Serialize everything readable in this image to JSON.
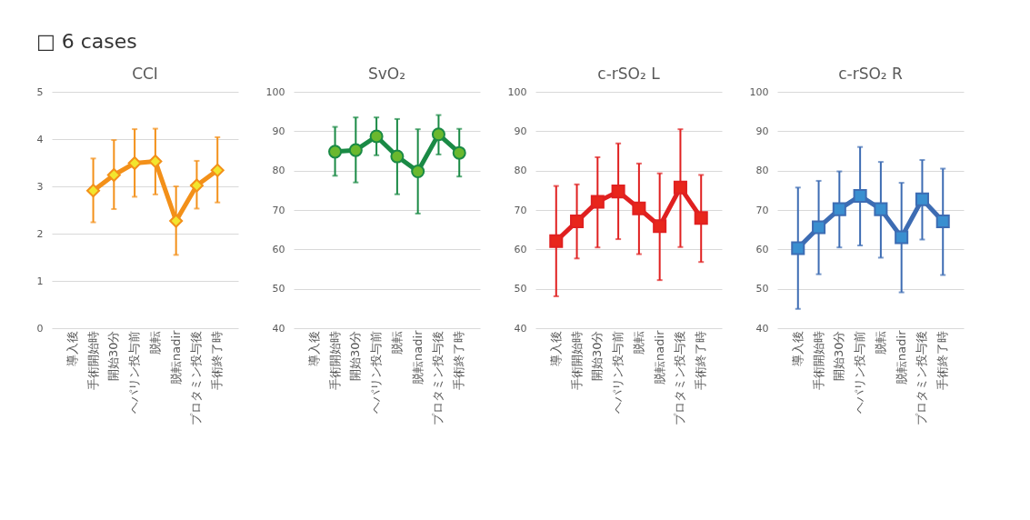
{
  "chart_data": [
    {
      "type": "line",
      "title": "CCI",
      "annotations": [
        "□ 6 cases"
      ],
      "categories": [
        "導入後",
        "手術開始時",
        "開始30分",
        "ヘパリン投与前",
        "脱転",
        "脱転nadir",
        "プロタミン投与後",
        "手術終了時"
      ],
      "series": [
        {
          "color": "#f39019",
          "values": [
            null,
            2.91,
            3.24,
            3.49,
            3.53,
            2.27,
            3.02,
            3.34
          ],
          "errors": [
            null,
            [
              2.24,
              3.59
            ],
            [
              2.52,
              3.98
            ],
            [
              2.78,
              4.21
            ],
            [
              2.83,
              4.22
            ],
            [
              1.55,
              3.0
            ],
            [
              2.53,
              3.54
            ],
            [
              2.66,
              4.04
            ]
          ]
        }
      ],
      "ylim": [
        0,
        5
      ],
      "yticks": [
        0,
        1,
        2,
        3,
        4,
        5
      ],
      "grid": "y",
      "marker": "diamond",
      "line_style": "solid"
    },
    {
      "type": "line",
      "title": "SvO₂",
      "categories": [
        "導入後",
        "手術開始時",
        "開始30分",
        "ヘパリン投与前",
        "脱転",
        "脱転nadir",
        "プロタミン投与後",
        "手術終了時"
      ],
      "series": [
        {
          "color": "#1a8a45",
          "values": [
            null,
            84.8,
            85.2,
            88.7,
            83.6,
            79.8,
            89.2,
            84.5
          ],
          "errors": [
            null,
            [
              78.7,
              91.1
            ],
            [
              77.0,
              93.5
            ],
            [
              83.9,
              93.5
            ],
            [
              74.0,
              93.1
            ],
            [
              69.1,
              90.5
            ],
            [
              84.1,
              94.1
            ],
            [
              78.5,
              90.6
            ]
          ]
        }
      ],
      "ylim": [
        40,
        100
      ],
      "yticks": [
        40,
        50,
        60,
        70,
        80,
        90,
        100
      ],
      "grid": "y",
      "marker": "circle",
      "line_style": "solid"
    },
    {
      "type": "line",
      "title": "c-rSO₂ L",
      "categories": [
        "導入後",
        "手術開始時",
        "開始30分",
        "ヘパリン投与前",
        "脱転",
        "脱転nadir",
        "プロタミン投与後",
        "手術終了時"
      ],
      "series": [
        {
          "color": "#e02020",
          "values": [
            62.1,
            67.1,
            72.1,
            74.7,
            70.4,
            65.9,
            75.7,
            68.0
          ],
          "errors": [
            [
              48.1,
              76.1
            ],
            [
              57.7,
              76.5
            ],
            [
              60.5,
              83.4
            ],
            [
              62.6,
              86.9
            ],
            [
              58.8,
              81.8
            ],
            [
              52.2,
              79.3
            ],
            [
              60.6,
              90.5
            ],
            [
              56.8,
              78.9
            ]
          ]
        }
      ],
      "ylim": [
        40,
        100
      ],
      "yticks": [
        40,
        50,
        60,
        70,
        80,
        90,
        100
      ],
      "grid": "y",
      "marker": "square",
      "line_style": "solid"
    },
    {
      "type": "line",
      "title": "c-rSO₂ R",
      "categories": [
        "導入後",
        "手術開始時",
        "開始30分",
        "ヘパリン投与前",
        "脱転",
        "脱転nadir",
        "プロタミン投与後",
        "手術終了時"
      ],
      "series": [
        {
          "color": "#3d6cb3",
          "values": [
            60.3,
            65.6,
            70.2,
            73.6,
            70.2,
            63.1,
            72.7,
            67.1
          ],
          "errors": [
            [
              44.9,
              75.7
            ],
            [
              53.7,
              77.4
            ],
            [
              60.5,
              79.8
            ],
            [
              61.0,
              86.0
            ],
            [
              57.9,
              82.2
            ],
            [
              49.1,
              76.9
            ],
            [
              62.5,
              82.7
            ],
            [
              53.5,
              80.5
            ]
          ]
        }
      ],
      "ylim": [
        40,
        100
      ],
      "yticks": [
        40,
        50,
        60,
        70,
        80,
        90,
        100
      ],
      "grid": "y",
      "marker": "square",
      "line_style": "solid"
    }
  ]
}
